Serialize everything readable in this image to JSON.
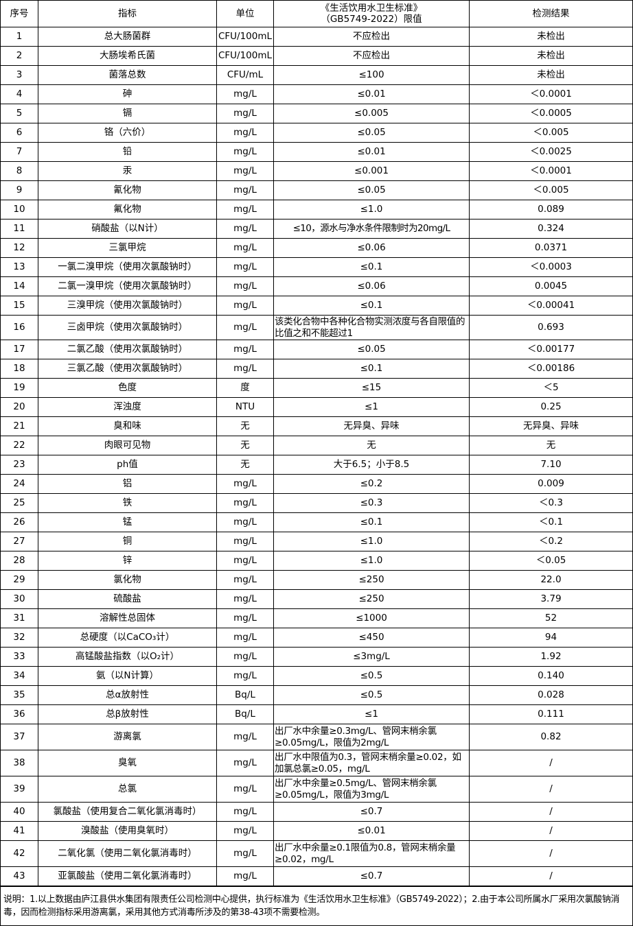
{
  "headers": [
    "序号",
    "指标",
    "单位",
    "《生活饮用水卫生标准》\n（GB5749-2022）限值",
    "检测结果"
  ],
  "rows": [
    [
      "1",
      "总大肠菌群",
      "CFU/100mL",
      "不应检出",
      "未检出"
    ],
    [
      "2",
      "大肠埃希氏菌",
      "CFU/100mL",
      "不应检出",
      "未检出"
    ],
    [
      "3",
      "菌落总数",
      "CFU/mL",
      "≤100",
      "未检出"
    ],
    [
      "4",
      "砷",
      "mg/L",
      "≤0.01",
      "＜0.0001"
    ],
    [
      "5",
      "镉",
      "mg/L",
      "≤0.005",
      "＜0.0005"
    ],
    [
      "6",
      "铬（六价）",
      "mg/L",
      "≤0.05",
      "＜0.005"
    ],
    [
      "7",
      "铅",
      "mg/L",
      "≤0.01",
      "＜0.0025"
    ],
    [
      "8",
      "汞",
      "mg/L",
      "≤0.001",
      "＜0.0001"
    ],
    [
      "9",
      "氰化物",
      "mg/L",
      "≤0.05",
      "＜0.005"
    ],
    [
      "10",
      "氟化物",
      "mg/L",
      "≤1.0",
      "0.089"
    ],
    [
      "11",
      "硝酸盐（以N计）",
      "mg/L",
      "≤10，源水与净水条件限制时为20mg/L",
      "0.324"
    ],
    [
      "12",
      "三氯甲烷",
      "mg/L",
      "≤0.06",
      "0.0371"
    ],
    [
      "13",
      "一氯二溴甲烷（使用次氯酸钠时）",
      "mg/L",
      "≤0.1",
      "＜0.0003"
    ],
    [
      "14",
      "二氯一溴甲烷（使用次氯酸钠时）",
      "mg/L",
      "≤0.06",
      "0.0045"
    ],
    [
      "15",
      "三溴甲烷（使用次氯酸钠时）",
      "mg/L",
      "≤0.1",
      "＜0.00041"
    ],
    [
      "16",
      "三卤甲烷（使用次氯酸钠时）",
      "mg/L",
      "该类化合物中各种化合物实测浓度与各自限值的比值之和不能超过1",
      "0.693"
    ],
    [
      "17",
      "二氯乙酸（使用次氯酸钠时）",
      "mg/L",
      "≤0.05",
      "＜0.00177"
    ],
    [
      "18",
      "三氯乙酸（使用次氯酸钠时）",
      "mg/L",
      "≤0.1",
      "＜0.00186"
    ],
    [
      "19",
      "色度",
      "度",
      "≤15",
      "＜5"
    ],
    [
      "20",
      "浑浊度",
      "NTU",
      "≤1",
      "0.25"
    ],
    [
      "21",
      "臭和味",
      "无",
      "无异臭、异味",
      "无异臭、异味"
    ],
    [
      "22",
      "肉眼可见物",
      "无",
      "无",
      "无"
    ],
    [
      "23",
      "ph值",
      "无",
      "大于6.5；小于8.5",
      "7.10"
    ],
    [
      "24",
      "铝",
      "mg/L",
      "≤0.2",
      "0.009"
    ],
    [
      "25",
      "铁",
      "mg/L",
      "≤0.3",
      "＜0.3"
    ],
    [
      "26",
      "锰",
      "mg/L",
      "≤0.1",
      "＜0.1"
    ],
    [
      "27",
      "铜",
      "mg/L",
      "≤1.0",
      "＜0.2"
    ],
    [
      "28",
      "锌",
      "mg/L",
      "≤1.0",
      "＜0.05"
    ],
    [
      "29",
      "氯化物",
      "mg/L",
      "≤250",
      "22.0"
    ],
    [
      "30",
      "硫酸盐",
      "mg/L",
      "≤250",
      "3.79"
    ],
    [
      "31",
      "溶解性总固体",
      "mg/L",
      "≤1000",
      "52"
    ],
    [
      "32",
      "总硬度（以CaCO₃计）",
      "mg/L",
      "≤450",
      "94"
    ],
    [
      "33",
      "高锰酸盐指数（以O₂计）",
      "mg/L",
      "≤3mg/L",
      "1.92"
    ],
    [
      "34",
      "氨（以N计算）",
      "mg/L",
      "≤0.5",
      "0.140"
    ],
    [
      "35",
      "总α放射性",
      "Bq/L",
      "≤0.5",
      "0.028"
    ],
    [
      "36",
      "总β放射性",
      "Bq/L",
      "≤1",
      "0.111"
    ],
    [
      "37",
      "游离氯",
      "mg/L",
      "出厂水中余量≥0.3mg/L、管网末梢余氯≥0.05mg/L，限值为2mg/L",
      "0.82"
    ],
    [
      "38",
      "臭氧",
      "mg/L",
      "出厂水中限值为0.3，管网末梢余量≥0.02，如加氯总氯≥0.05，mg/L",
      "/"
    ],
    [
      "39",
      "总氯",
      "mg/L",
      "出厂水中余量≥0.5mg/L、管网末梢余氯≥0.05mg/L，限值为3mg/L",
      "/"
    ],
    [
      "40",
      "氯酸盐（使用复合二氧化氯消毒时）",
      "mg/L",
      "≤0.7",
      "/"
    ],
    [
      "41",
      "溴酸盐（使用臭氧时）",
      "mg/L",
      "≤0.01",
      "/"
    ],
    [
      "42",
      "二氧化氯（使用二氧化氯消毒时）",
      "mg/L",
      "出厂水中余量≥0.1限值为0.8，管网末梢余量≥0.02，mg/L",
      "/"
    ],
    [
      "43",
      "亚氯酸盐（使用二氧化氯消毒时）",
      "mg/L",
      "≤0.7",
      "/"
    ]
  ],
  "note": "说明：1.以上数据由庐江县供水集团有限责任公司检测中心提供，执行标准为《生活饮用水卫生标准》（GB5749-2022）；2.由于本公司所属水厂采用次氯酸钠消毒，因而检测指标采用游离氯，采用其他方式消毒所涉及的第38-43项不需要检测。"
}
